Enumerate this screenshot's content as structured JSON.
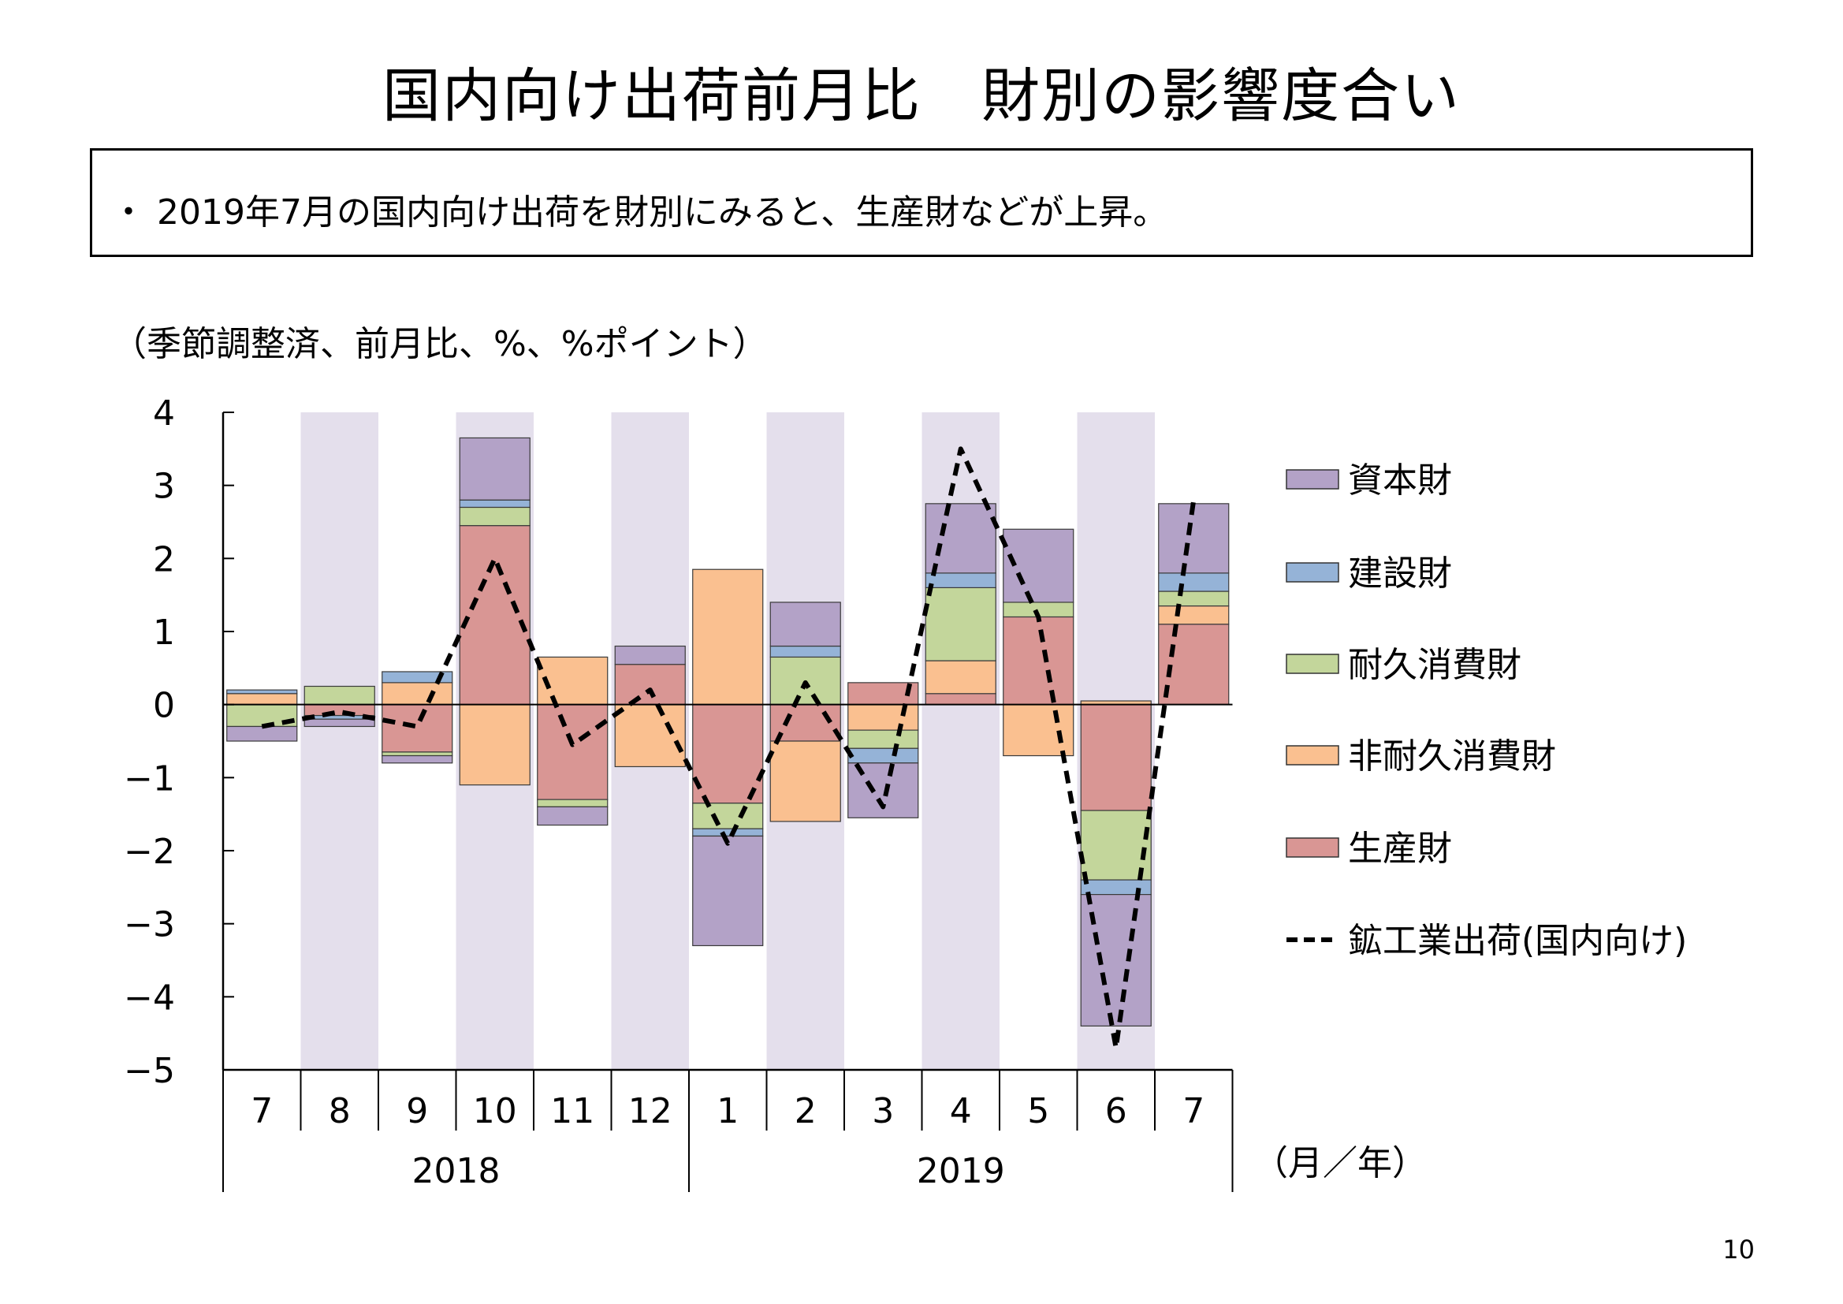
{
  "title": "国内向け出荷前月比　財別の影響度合い",
  "summary": "・ 2019年7月の国内向け出荷を財別にみると、生産財などが上昇。",
  "unit_note": "（季節調整済、前月比、%、%ポイント）",
  "page_number": "10",
  "colors": {
    "capital": "#b3a2c7",
    "construction": "#95b3d7",
    "durable": "#c3d69b",
    "nondurable": "#fac090",
    "production": "#d99694",
    "shade": "#e4dfec",
    "line": "#000000"
  },
  "chart_data": {
    "type": "bar",
    "stacked": true,
    "title": "",
    "xlabel": "（月／年）",
    "ylabel": "",
    "ylim": [
      -5,
      4
    ],
    "yticks": [
      4,
      3,
      2,
      1,
      0,
      -1,
      -2,
      -3,
      -4,
      -5
    ],
    "ytick_labels": [
      "4",
      "3",
      "2",
      "1",
      "0",
      "−1",
      "−2",
      "−3",
      "−4",
      "−5"
    ],
    "categories": [
      "7",
      "8",
      "9",
      "10",
      "11",
      "12",
      "1",
      "2",
      "3",
      "4",
      "5",
      "6",
      "7"
    ],
    "years": [
      {
        "label": "2018",
        "start": 0,
        "end": 5
      },
      {
        "label": "2019",
        "start": 6,
        "end": 12
      }
    ],
    "shaded_columns": [
      1,
      3,
      5,
      7,
      9,
      11
    ],
    "legend_position": "right",
    "series": [
      {
        "name": "生産財",
        "key": "production",
        "values": [
          0.0,
          -0.15,
          -0.65,
          2.45,
          -1.3,
          0.55,
          -1.35,
          -0.5,
          0.3,
          0.15,
          1.2,
          -1.45,
          1.1
        ]
      },
      {
        "name": "非耐久消費財",
        "key": "nondurable",
        "values": [
          0.15,
          0.0,
          0.3,
          -1.1,
          0.65,
          -0.85,
          1.85,
          -1.1,
          -0.35,
          0.45,
          -0.7,
          0.05,
          0.25
        ]
      },
      {
        "name": "耐久消費財",
        "key": "durable",
        "values": [
          -0.3,
          0.25,
          -0.05,
          0.25,
          -0.1,
          0.0,
          -0.35,
          0.65,
          -0.25,
          1.0,
          0.2,
          -0.95,
          0.2
        ]
      },
      {
        "name": "建設財",
        "key": "construction",
        "values": [
          0.05,
          -0.05,
          0.15,
          0.1,
          0.0,
          0.0,
          -0.1,
          0.15,
          -0.2,
          0.2,
          0.0,
          -0.2,
          0.25
        ]
      },
      {
        "name": "資本財",
        "key": "capital",
        "values": [
          -0.2,
          -0.1,
          -0.1,
          0.85,
          -0.25,
          0.25,
          -1.5,
          0.6,
          -0.75,
          0.95,
          1.0,
          -1.8,
          0.95
        ]
      }
    ],
    "line_series": {
      "name": "鉱工業出荷(国内向け)",
      "values": [
        -0.3,
        -0.1,
        -0.3,
        2.0,
        -0.55,
        0.2,
        -1.9,
        0.3,
        -1.4,
        3.5,
        1.2,
        -4.7,
        2.8
      ]
    },
    "legend_order": [
      "資本財",
      "建設財",
      "耐久消費財",
      "非耐久消費財",
      "生産財",
      "鉱工業出荷(国内向け)"
    ]
  }
}
